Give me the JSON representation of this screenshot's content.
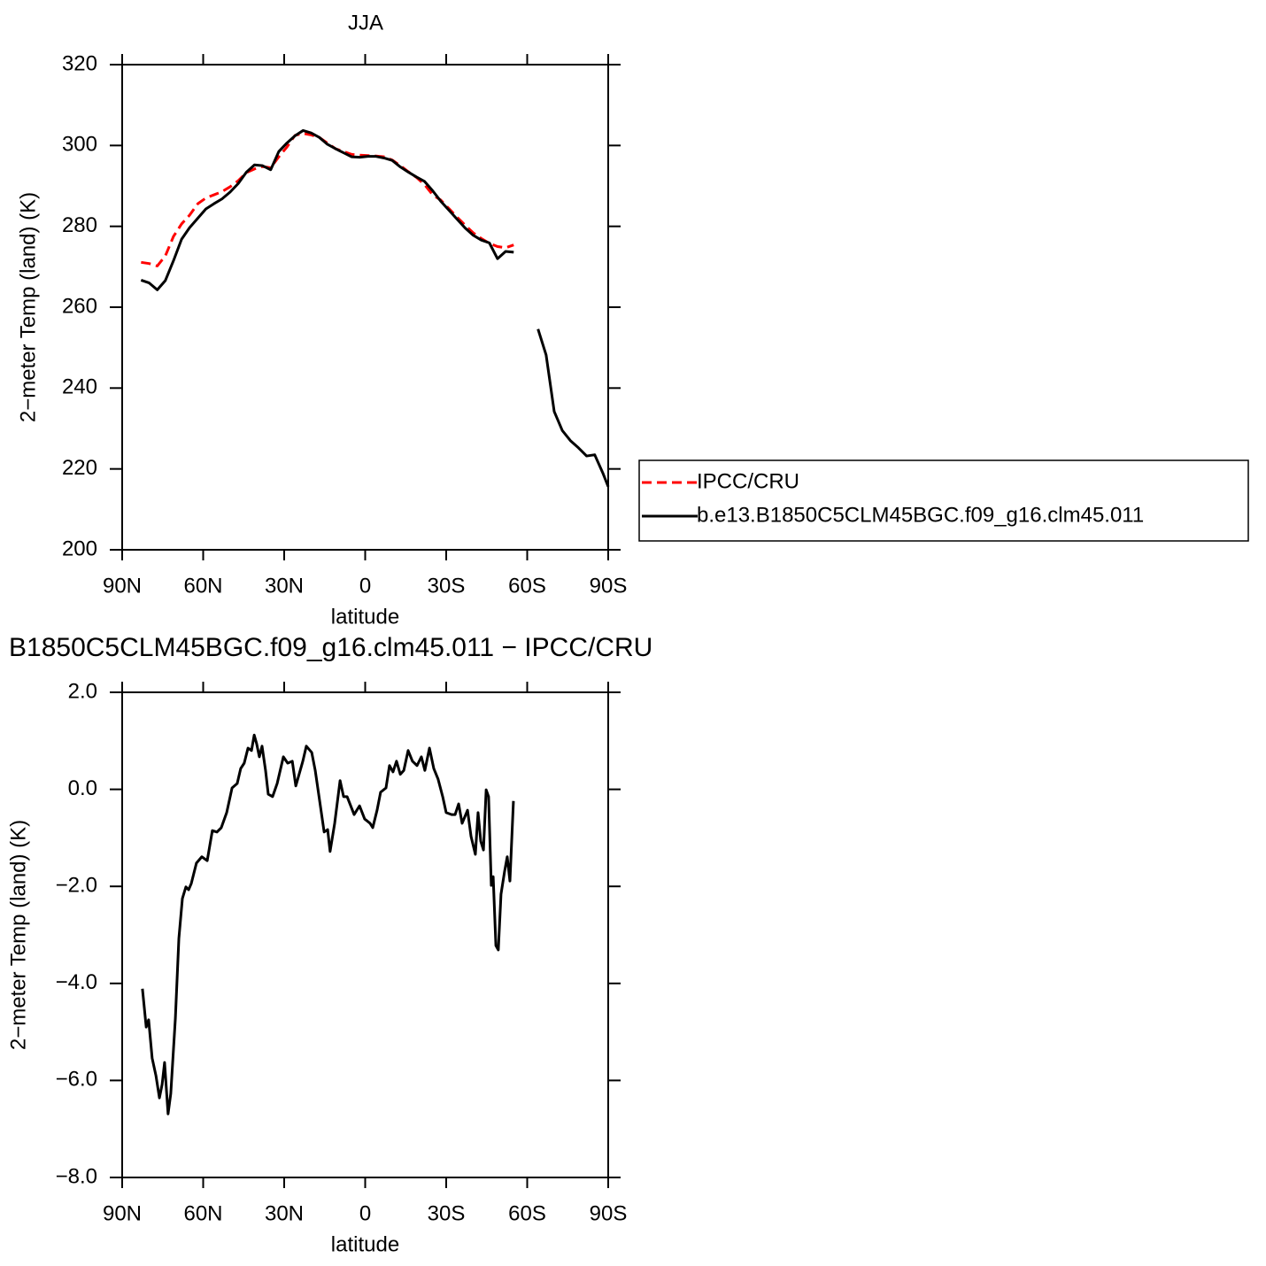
{
  "chart_data": [
    {
      "type": "line",
      "title": "JJA",
      "ylabel": "2−meter Temp (land) (K)",
      "xlabel": "latitude",
      "xlim": [
        90,
        -90
      ],
      "xticks": [
        {
          "value": 90,
          "label": "90N"
        },
        {
          "value": 60,
          "label": "60N"
        },
        {
          "value": 30,
          "label": "30N"
        },
        0,
        {
          "value": -30,
          "label": "30S"
        },
        {
          "value": -60,
          "label": "60S"
        },
        {
          "value": -90,
          "label": "90S"
        }
      ],
      "ylim": [
        200,
        320
      ],
      "yticks": [
        200,
        220,
        240,
        260,
        280,
        300,
        320
      ],
      "legend": "right",
      "x": [
        83,
        80,
        77,
        74,
        71,
        68,
        65,
        62,
        59,
        56,
        53,
        50,
        47,
        44,
        41,
        38,
        35,
        32,
        29,
        26,
        23,
        20,
        17,
        14,
        11,
        8,
        5,
        2,
        -1,
        -4,
        -7,
        -10,
        -13,
        -16,
        -19,
        -22,
        -25,
        -28,
        -31,
        -34,
        -37,
        -40,
        -43,
        -46,
        -49,
        -52,
        -55,
        -58,
        -61,
        -64,
        -67,
        -70,
        -73,
        -76,
        -79,
        -82,
        -85,
        -88,
        -90
      ],
      "series": [
        {
          "name": "IPCC/CRU",
          "color": "#ff0000",
          "line_style": "dashed",
          "values": [
            271.1,
            270.8,
            270.2,
            272.7,
            277.5,
            280.6,
            282.8,
            285.6,
            287.0,
            287.8,
            288.6,
            289.8,
            291.3,
            293.3,
            294.2,
            294.8,
            294.5,
            297.2,
            299.6,
            302.5,
            303.0,
            302.6,
            302,
            300.6,
            299.2,
            298.5,
            297.8,
            297.6,
            297.5,
            297.4,
            297.2,
            296.4,
            295.0,
            293.5,
            292.1,
            290.3,
            287.8,
            286.5,
            284.4,
            282.3,
            280.3,
            278.4,
            277,
            275.8,
            275,
            274.7,
            275.4,
            null,
            null,
            null,
            null,
            null,
            null,
            null,
            null,
            null,
            null,
            null,
            null
          ]
        },
        {
          "name": "b.e13.B1850C5CLM45BGC.f09_g16.clm45.011",
          "color": "#000000",
          "line_style": "solid",
          "values": [
            266.7,
            266.0,
            264.3,
            266.6,
            271.5,
            276.8,
            279.7,
            282,
            284.3,
            285.6,
            286.8,
            288.5,
            290.6,
            293.4,
            295.2,
            295,
            294,
            298.5,
            300.6,
            302.4,
            303.7,
            303.1,
            302,
            300.3,
            299.2,
            298.2,
            297.2,
            297.1,
            297.3,
            297.3,
            296.9,
            296.3,
            294.7,
            293.4,
            292.2,
            291.1,
            288.8,
            286.2,
            284,
            281.8,
            279.6,
            277.8,
            276.6,
            275.9,
            272,
            273.8,
            273.6,
            null,
            null,
            254.6,
            248.2,
            234.2,
            229.5,
            227,
            225.2,
            223.2,
            223.5,
            219,
            215.6
          ]
        }
      ]
    },
    {
      "type": "line",
      "title": "B1850C5CLM45BGC.f09_g16.clm45.011 − IPCC/CRU",
      "ylabel": "2−meter Temp (land) (K)",
      "xlabel": "latitude",
      "xlim": [
        90,
        -90
      ],
      "xticks": [
        {
          "value": 90,
          "label": "90N"
        },
        {
          "value": 60,
          "label": "60N"
        },
        {
          "value": 30,
          "label": "30N"
        },
        0,
        {
          "value": -30,
          "label": "30S"
        },
        {
          "value": -60,
          "label": "60S"
        },
        {
          "value": -90,
          "label": "90S"
        }
      ],
      "ylim": [
        -8,
        2
      ],
      "yticks": [
        {
          "value": -8,
          "label": "−8.0"
        },
        {
          "value": -6,
          "label": "−6.0"
        },
        {
          "value": -4,
          "label": "−4.0"
        },
        {
          "value": -2,
          "label": "−2.0"
        },
        {
          "value": 0,
          "label": "0.0"
        },
        {
          "value": 2,
          "label": "2.0"
        }
      ],
      "color": "#000000",
      "x": [
        82.5,
        81.1,
        80.2,
        78.9,
        77.5,
        76.2,
        75.2,
        74.3,
        73.0,
        72.0,
        70.3,
        69.0,
        67.7,
        66.4,
        65.4,
        64.4,
        62.5,
        60.5,
        58.5,
        56.6,
        54.9,
        53.3,
        51.3,
        49.3,
        47.4,
        46.1,
        44.8,
        43.4,
        42.1,
        41.1,
        40.2,
        39.2,
        38.2,
        36.9,
        35.9,
        34.3,
        32.6,
        30.3,
        28.7,
        27.0,
        25.7,
        23.1,
        21.8,
        19.8,
        18.5,
        16.6,
        15.2,
        13.9,
        13.0,
        11.3,
        9.3,
        8.0,
        6.7,
        4.1,
        2.1,
        0.2,
        -1.8,
        -2.8,
        -4.4,
        -5.7,
        -7.7,
        -9.0,
        -10.3,
        -11.6,
        -13.0,
        -14.3,
        -15.9,
        -17.5,
        -19.2,
        -20.8,
        -22.1,
        -23.8,
        -25.4,
        -27.0,
        -28.7,
        -30.0,
        -32.0,
        -33.3,
        -34.6,
        -35.9,
        -37.9,
        -39.2,
        -40.8,
        -41.8,
        -42.8,
        -43.8,
        -44.8,
        -45.7,
        -46.7,
        -47.4,
        -48.4,
        -49.3,
        -50.3,
        -51.6,
        -52.6,
        -53.6,
        -54.9
      ],
      "values": [
        -4.11,
        -4.9,
        -4.75,
        -5.54,
        -5.9,
        -6.36,
        -6.08,
        -5.63,
        -6.69,
        -6.27,
        -4.72,
        -3.07,
        -2.25,
        -2.01,
        -2.07,
        -1.94,
        -1.52,
        -1.39,
        -1.47,
        -0.85,
        -0.88,
        -0.79,
        -0.48,
        0.03,
        0.12,
        0.43,
        0.54,
        0.85,
        0.8,
        1.12,
        0.94,
        0.67,
        0.89,
        0.39,
        -0.1,
        -0.15,
        0.12,
        0.67,
        0.54,
        0.58,
        0.07,
        0.58,
        0.89,
        0.76,
        0.39,
        -0.34,
        -0.88,
        -0.83,
        -1.28,
        -0.7,
        0.18,
        -0.15,
        -0.15,
        -0.52,
        -0.34,
        -0.61,
        -0.7,
        -0.79,
        -0.43,
        -0.06,
        0.03,
        0.49,
        0.36,
        0.58,
        0.31,
        0.39,
        0.8,
        0.58,
        0.49,
        0.67,
        0.39,
        0.85,
        0.43,
        0.21,
        -0.15,
        -0.48,
        -0.52,
        -0.52,
        -0.3,
        -0.7,
        -0.43,
        -0.97,
        -1.34,
        -0.48,
        -1.07,
        -1.25,
        -0.01,
        -0.15,
        -1.98,
        -1.8,
        -3.22,
        -3.31,
        -2.16,
        -1.7,
        -1.39,
        -1.89,
        -0.24
      ]
    }
  ]
}
